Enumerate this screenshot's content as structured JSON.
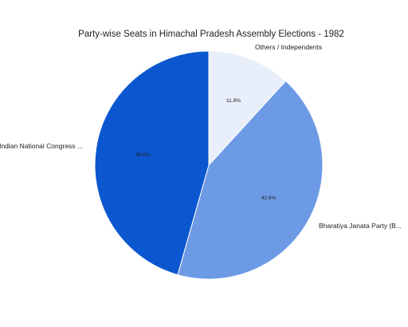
{
  "chart_data": {
    "type": "pie",
    "title": "Party-wise Seats in Himachal Pradesh Assembly Elections - 1982",
    "slices": [
      {
        "label": "Others / Independents",
        "value": 11.8,
        "display": "11.8%",
        "color": "#e8eefa"
      },
      {
        "label": "Bharatiya Janata Party (B...",
        "value": 42.6,
        "display": "42.6%",
        "color": "#6d9ae5"
      },
      {
        "label": "Indian National Congress ...",
        "value": 45.6,
        "display": "45.6%",
        "color": "#0b57d0"
      }
    ],
    "legend": "none"
  }
}
